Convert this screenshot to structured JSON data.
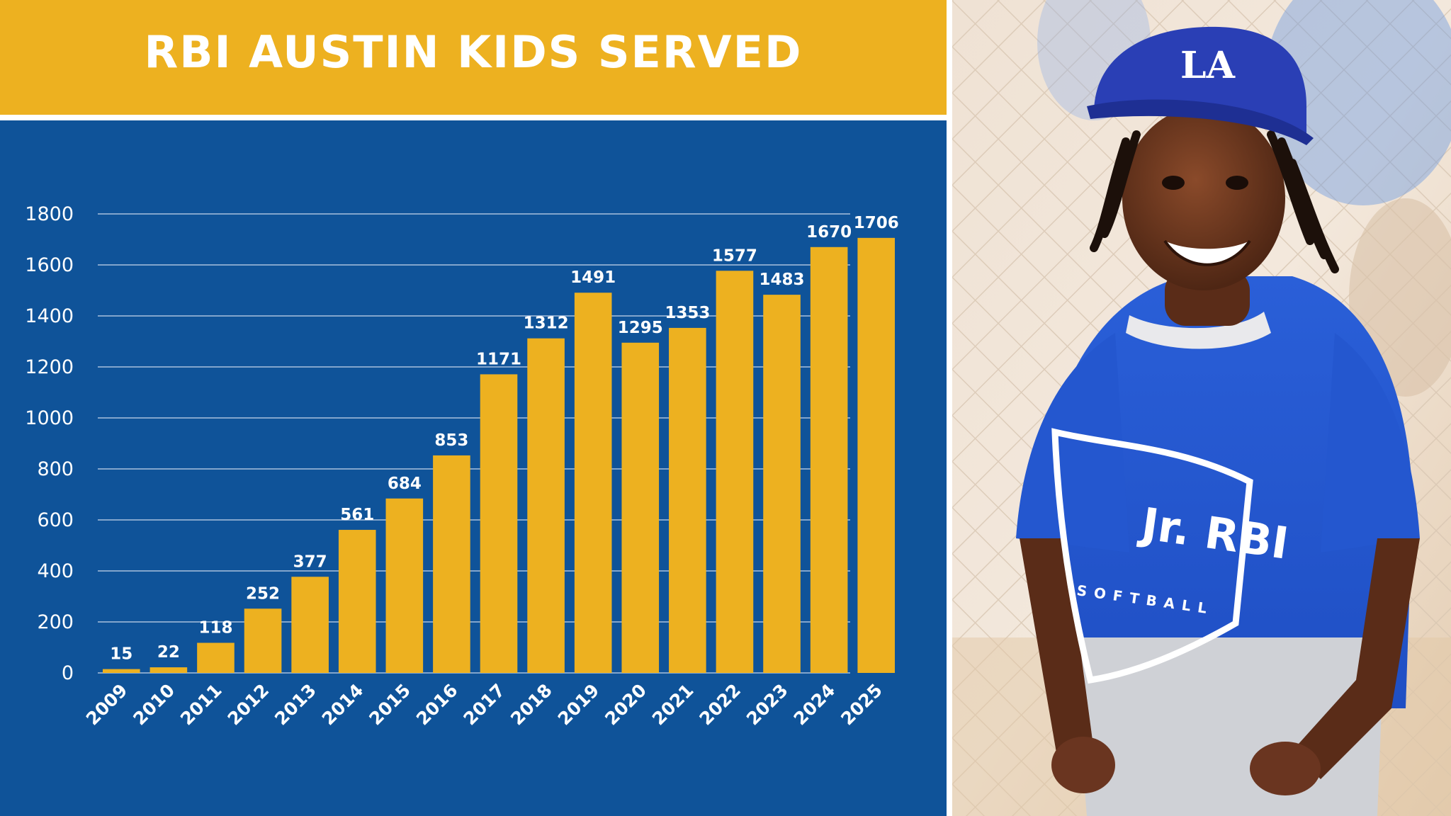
{
  "title": "RBI AUSTIN KIDS SERVED",
  "colors": {
    "banner": "#edb120",
    "panel": "#0f5399",
    "bar": "#edb120",
    "grid": "#c8d6ea",
    "text": "#ffffff"
  },
  "photo": {
    "cap_logo": "LA",
    "shirt_text": "Jr. RBI",
    "shirt_subtext": "SOFTBALL"
  },
  "chart_data": {
    "type": "bar",
    "title": "RBI AUSTIN KIDS SERVED",
    "categories": [
      "2009",
      "2010",
      "2011",
      "2012",
      "2013",
      "2014",
      "2015",
      "2016",
      "2017",
      "2018",
      "2019",
      "2020",
      "2021",
      "2022",
      "2023",
      "2024",
      "2025"
    ],
    "values": [
      15,
      22,
      118,
      252,
      377,
      561,
      684,
      853,
      1171,
      1312,
      1491,
      1295,
      1353,
      1577,
      1483,
      1670,
      1706
    ],
    "ylim": [
      0,
      1800
    ],
    "yticks": [
      0,
      200,
      400,
      600,
      800,
      1000,
      1200,
      1400,
      1600,
      1800
    ],
    "grid": true,
    "legend": "none"
  }
}
